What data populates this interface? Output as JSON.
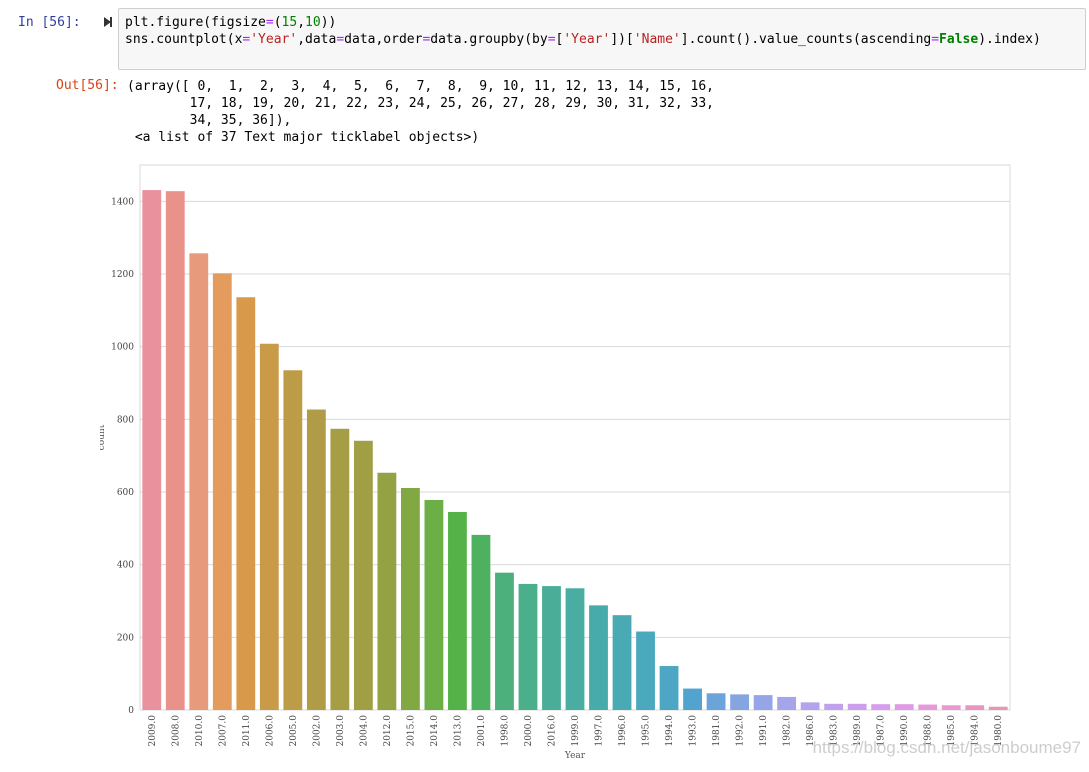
{
  "notebook": {
    "in_prompt": "In  [56]:",
    "code_lines": [
      [
        {
          "t": "plt.figure(figsize",
          "c": ""
        },
        {
          "t": "=",
          "c": "op"
        },
        {
          "t": "(",
          "c": ""
        },
        {
          "t": "15",
          "c": "num"
        },
        {
          "t": ",",
          "c": ""
        },
        {
          "t": "10",
          "c": "num"
        },
        {
          "t": "))",
          "c": ""
        }
      ],
      [
        {
          "t": "sns.countplot(x",
          "c": ""
        },
        {
          "t": "=",
          "c": "op"
        },
        {
          "t": "'Year'",
          "c": "str"
        },
        {
          "t": ",data",
          "c": ""
        },
        {
          "t": "=",
          "c": "op"
        },
        {
          "t": "data,order",
          "c": ""
        },
        {
          "t": "=",
          "c": "op"
        },
        {
          "t": "data.groupby(by",
          "c": ""
        },
        {
          "t": "=",
          "c": "op"
        },
        {
          "t": "[",
          "c": ""
        },
        {
          "t": "'Year'",
          "c": "str"
        },
        {
          "t": "])[",
          "c": ""
        },
        {
          "t": "'Name'",
          "c": "str"
        },
        {
          "t": "].count().value_counts(ascending",
          "c": ""
        },
        {
          "t": "=",
          "c": "op"
        },
        {
          "t": "False",
          "c": "kw-green"
        },
        {
          "t": ").index)",
          "c": ""
        }
      ]
    ],
    "out_prompt": "Out[56]:",
    "output_text": "(array([ 0,  1,  2,  3,  4,  5,  6,  7,  8,  9, 10, 11, 12, 13, 14, 15, 16,\n        17, 18, 19, 20, 21, 22, 23, 24, 25, 26, 27, 28, 29, 30, 31, 32, 33,\n        34, 35, 36]),\n <a list of 37 Text major ticklabel objects>)",
    "watermark": "https://blog.csdn.net/jasonboume97"
  },
  "chart_data": {
    "type": "bar",
    "xlabel": "Year",
    "ylabel": "count",
    "ylim": [
      0,
      1500
    ],
    "yticks": [
      0,
      200,
      400,
      600,
      800,
      1000,
      1200,
      1400
    ],
    "grid": true,
    "categories": [
      "2009.0",
      "2008.0",
      "2010.0",
      "2007.0",
      "2011.0",
      "2006.0",
      "2005.0",
      "2002.0",
      "2003.0",
      "2004.0",
      "2012.0",
      "2015.0",
      "2014.0",
      "2013.0",
      "2001.0",
      "1998.0",
      "2000.0",
      "2016.0",
      "1999.0",
      "1997.0",
      "1996.0",
      "1995.0",
      "1994.0",
      "1993.0",
      "1981.0",
      "1992.0",
      "1991.0",
      "1982.0",
      "1986.0",
      "1983.0",
      "1989.0",
      "1987.0",
      "1990.0",
      "1988.0",
      "1985.0",
      "1984.0",
      "1980.0"
    ],
    "values": [
      1431,
      1428,
      1257,
      1202,
      1136,
      1008,
      935,
      827,
      774,
      741,
      653,
      611,
      578,
      545,
      482,
      378,
      347,
      341,
      335,
      288,
      261,
      216,
      121,
      59,
      46,
      43,
      41,
      36,
      21,
      17,
      17,
      16,
      16,
      15,
      13,
      13,
      9
    ],
    "colors": [
      "#e9929e",
      "#e8928a",
      "#e89a7c",
      "#e39c5e",
      "#d89a4a",
      "#c99a48",
      "#bd9c47",
      "#b09c46",
      "#a69e44",
      "#a09f44",
      "#94a244",
      "#82a844",
      "#6caf47",
      "#55b249",
      "#4db160",
      "#4cb07c",
      "#4caf8c",
      "#4aad98",
      "#49ada2",
      "#48abab",
      "#49aab3",
      "#4aa9bd",
      "#4ea6c5",
      "#53a3cf",
      "#6ba3da",
      "#85a5e1",
      "#95a5e8",
      "#a6a5ec",
      "#b5a2ed",
      "#c1a0ee",
      "#cc9fed",
      "#d79dec",
      "#e09ae5",
      "#e799dc",
      "#e998d0",
      "#e995c2",
      "#e995b4"
    ]
  }
}
